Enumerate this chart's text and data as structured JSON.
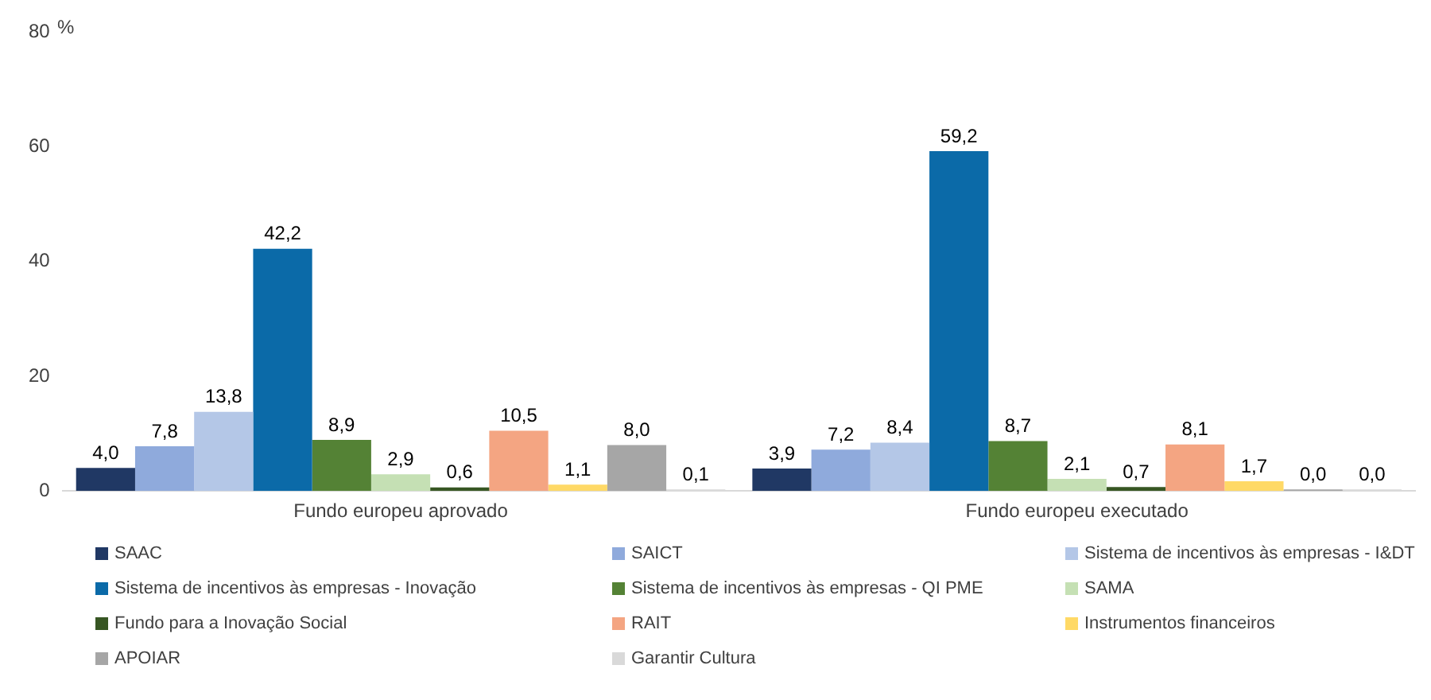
{
  "chart_data": {
    "type": "bar",
    "ylabel": "%",
    "categories": [
      "Fundo europeu aprovado",
      "Fundo europeu executado"
    ],
    "ylim": [
      0,
      80
    ],
    "yticks": [
      0,
      20,
      40,
      60,
      80
    ],
    "grid": false,
    "legend": "bottom",
    "series": [
      {
        "name": "SAAC",
        "color": "#203864",
        "values": [
          4.0,
          3.9
        ],
        "value_labels": [
          "4,0",
          "3,9"
        ]
      },
      {
        "name": "SAICT",
        "color": "#8faadc",
        "values": [
          7.8,
          7.2
        ],
        "value_labels": [
          "7,8",
          "7,2"
        ]
      },
      {
        "name": "Sistema de incentivos às empresas - I&DT",
        "color": "#b4c7e7",
        "values": [
          13.8,
          8.4
        ],
        "value_labels": [
          "13,8",
          "8,4"
        ]
      },
      {
        "name": "Sistema de incentivos às empresas - Inovação",
        "color": "#0b6aa8",
        "values": [
          42.2,
          59.2
        ],
        "value_labels": [
          "42,2",
          "59,2"
        ]
      },
      {
        "name": "Sistema de incentivos às empresas - QI PME",
        "color": "#548235",
        "values": [
          8.9,
          8.7
        ],
        "value_labels": [
          "8,9",
          "8,7"
        ]
      },
      {
        "name": "SAMA",
        "color": "#c5e0b4",
        "values": [
          2.9,
          2.1
        ],
        "value_labels": [
          "2,9",
          "2,1"
        ]
      },
      {
        "name": "Fundo para a Inovação Social",
        "color": "#375623",
        "values": [
          0.6,
          0.7
        ],
        "value_labels": [
          "0,6",
          "0,7"
        ]
      },
      {
        "name": "RAIT",
        "color": "#f4a582",
        "values": [
          10.5,
          8.1
        ],
        "value_labels": [
          "10,5",
          "8,1"
        ]
      },
      {
        "name": "Instrumentos financeiros",
        "color": "#ffd966",
        "values": [
          1.1,
          1.7
        ],
        "value_labels": [
          "1,1",
          "1,7"
        ]
      },
      {
        "name": "APOIAR",
        "color": "#a6a6a6",
        "values": [
          8.0,
          0.0
        ],
        "value_labels": [
          "8,0",
          "0,0"
        ]
      },
      {
        "name": "Garantir Cultura",
        "color": "#d9d9d9",
        "values": [
          0.1,
          0.0
        ],
        "value_labels": [
          "0,1",
          "0,0"
        ]
      }
    ]
  }
}
